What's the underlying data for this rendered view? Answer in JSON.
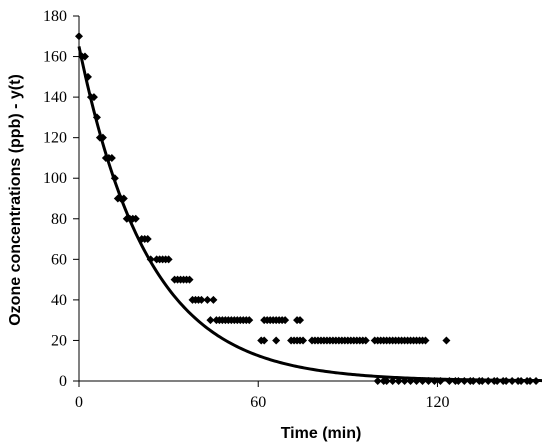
{
  "chart_data": {
    "type": "scatter",
    "title": "",
    "xlabel": "Time (min)",
    "ylabel": "Ozone concentrations (ppb)  - y(t)",
    "xlim": [
      0,
      155
    ],
    "ylim": [
      0,
      180
    ],
    "xticks": [
      0,
      60,
      120
    ],
    "yticks": [
      0,
      20,
      40,
      60,
      80,
      100,
      120,
      140,
      160,
      180
    ],
    "grid": false,
    "legend": "none",
    "colors": {
      "axis": "#000000",
      "points": "#000000",
      "curve": "#000000"
    },
    "series": [
      {
        "type": "scatter",
        "marker": "diamond",
        "points": [
          [
            0,
            170
          ],
          [
            1,
            160
          ],
          [
            2,
            160
          ],
          [
            3,
            150
          ],
          [
            4,
            140
          ],
          [
            5,
            140
          ],
          [
            6,
            130
          ],
          [
            7,
            120
          ],
          [
            8,
            120
          ],
          [
            9,
            110
          ],
          [
            10,
            110
          ],
          [
            11,
            110
          ],
          [
            12,
            100
          ],
          [
            13,
            90
          ],
          [
            14,
            90
          ],
          [
            15,
            90
          ],
          [
            16,
            80
          ],
          [
            17,
            80
          ],
          [
            18,
            80
          ],
          [
            19,
            80
          ],
          [
            21,
            70
          ],
          [
            22,
            70
          ],
          [
            23,
            70
          ],
          [
            24,
            60
          ],
          [
            26,
            60
          ],
          [
            27,
            60
          ],
          [
            28,
            60
          ],
          [
            29,
            60
          ],
          [
            30,
            60
          ],
          [
            32,
            50
          ],
          [
            33,
            50
          ],
          [
            34,
            50
          ],
          [
            35,
            50
          ],
          [
            36,
            50
          ],
          [
            37,
            50
          ],
          [
            38,
            40
          ],
          [
            39,
            40
          ],
          [
            40,
            40
          ],
          [
            41,
            40
          ],
          [
            43,
            40
          ],
          [
            45,
            40
          ],
          [
            44,
            30
          ],
          [
            46,
            30
          ],
          [
            47,
            30
          ],
          [
            48,
            30
          ],
          [
            49,
            30
          ],
          [
            50,
            30
          ],
          [
            51,
            30
          ],
          [
            52,
            30
          ],
          [
            53,
            30
          ],
          [
            54,
            30
          ],
          [
            55,
            30
          ],
          [
            56,
            30
          ],
          [
            57,
            30
          ],
          [
            62,
            30
          ],
          [
            63,
            30
          ],
          [
            64,
            30
          ],
          [
            65,
            30
          ],
          [
            66,
            30
          ],
          [
            67,
            30
          ],
          [
            68,
            30
          ],
          [
            69,
            30
          ],
          [
            73,
            30
          ],
          [
            74,
            30
          ],
          [
            61,
            20
          ],
          [
            62,
            20
          ],
          [
            66,
            20
          ],
          [
            71,
            20
          ],
          [
            72,
            20
          ],
          [
            73,
            20
          ],
          [
            74,
            20
          ],
          [
            75,
            20
          ],
          [
            78,
            20
          ],
          [
            79,
            20
          ],
          [
            80,
            20
          ],
          [
            81,
            20
          ],
          [
            82,
            20
          ],
          [
            83,
            20
          ],
          [
            84,
            20
          ],
          [
            85,
            20
          ],
          [
            86,
            20
          ],
          [
            87,
            20
          ],
          [
            88,
            20
          ],
          [
            89,
            20
          ],
          [
            90,
            20
          ],
          [
            91,
            20
          ],
          [
            92,
            20
          ],
          [
            93,
            20
          ],
          [
            94,
            20
          ],
          [
            95,
            20
          ],
          [
            96,
            20
          ],
          [
            99,
            20
          ],
          [
            100,
            20
          ],
          [
            101,
            20
          ],
          [
            102,
            20
          ],
          [
            103,
            20
          ],
          [
            104,
            20
          ],
          [
            105,
            20
          ],
          [
            106,
            20
          ],
          [
            107,
            20
          ],
          [
            108,
            20
          ],
          [
            109,
            20
          ],
          [
            110,
            20
          ],
          [
            111,
            20
          ],
          [
            112,
            20
          ],
          [
            113,
            20
          ],
          [
            114,
            20
          ],
          [
            115,
            20
          ],
          [
            116,
            20
          ],
          [
            123,
            20
          ],
          [
            100,
            0
          ],
          [
            102,
            0
          ],
          [
            103,
            0
          ],
          [
            105,
            0
          ],
          [
            107,
            0
          ],
          [
            109,
            0
          ],
          [
            111,
            0
          ],
          [
            113,
            0
          ],
          [
            115,
            0
          ],
          [
            117,
            0
          ],
          [
            119,
            0
          ],
          [
            121,
            0
          ],
          [
            124,
            0
          ],
          [
            126,
            0
          ],
          [
            127,
            0
          ],
          [
            129,
            0
          ],
          [
            131,
            0
          ],
          [
            132,
            0
          ],
          [
            134,
            0
          ],
          [
            135,
            0
          ],
          [
            137,
            0
          ],
          [
            139,
            0
          ],
          [
            140,
            0
          ],
          [
            142,
            0
          ],
          [
            143,
            0
          ],
          [
            145,
            0
          ],
          [
            147,
            0
          ],
          [
            148,
            0
          ],
          [
            150,
            0
          ],
          [
            151,
            0
          ],
          [
            153,
            0
          ]
        ]
      },
      {
        "type": "line",
        "function": "y = 165 * exp(-0.043 * t)",
        "x_range": [
          0,
          155
        ]
      }
    ]
  }
}
